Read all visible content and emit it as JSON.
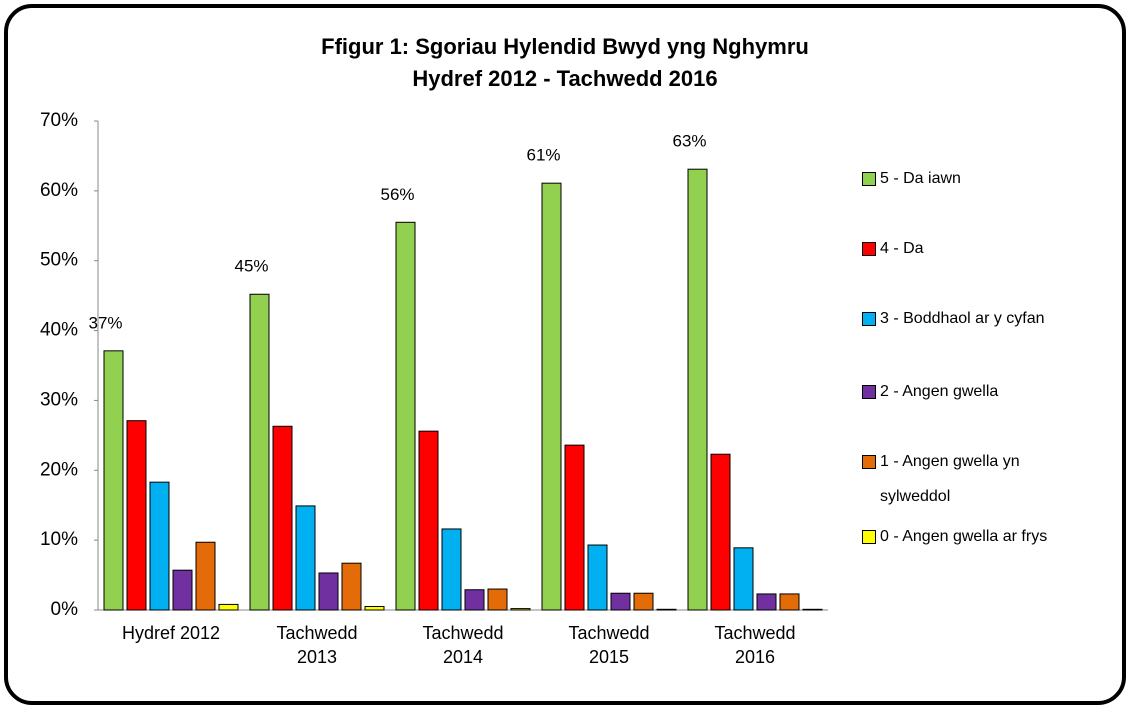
{
  "chart_data": {
    "type": "bar",
    "title": [
      "Ffigur 1: Sgoriau Hylendid Bwyd yng Nghymru",
      "Hydref 2012 - Tachwedd 2016"
    ],
    "categories": [
      "Hydref 2012",
      "Tachwedd 2013",
      "Tachwedd 2014",
      "Tachwedd 2015",
      "Tachwedd 2016"
    ],
    "series": [
      {
        "name": "5 - Da iawn",
        "color": "#92d050",
        "values": [
          37.1,
          45.2,
          55.5,
          61.1,
          63.1
        ],
        "value_labels": [
          "37%",
          "45%",
          "56%",
          "61%",
          "63%"
        ]
      },
      {
        "name": "4 - Da",
        "color": "#ff0000",
        "values": [
          27.1,
          26.3,
          25.6,
          23.6,
          22.3
        ]
      },
      {
        "name": "3 - Boddhaol ar y cyfan",
        "color": "#00b0f0",
        "values": [
          18.3,
          14.9,
          11.6,
          9.3,
          8.9
        ]
      },
      {
        "name": "2 - Angen gwella",
        "color": "#7030a0",
        "values": [
          5.7,
          5.3,
          2.9,
          2.4,
          2.3
        ]
      },
      {
        "name": "1 - Angen gwella yn sylweddol",
        "color": "#e36c09",
        "values": [
          9.7,
          6.7,
          3.0,
          2.4,
          2.3
        ]
      },
      {
        "name": "0 - Angen gwella ar frys",
        "color": "#ffff00",
        "values": [
          0.8,
          0.5,
          0.2,
          0.1,
          0.1
        ]
      }
    ],
    "ylim": [
      0,
      70
    ],
    "yticks": [
      {
        "value": 0,
        "label": "0%"
      },
      {
        "value": 10,
        "label": "10%"
      },
      {
        "value": 20,
        "label": "20%"
      },
      {
        "value": 30,
        "label": "30%"
      },
      {
        "value": 40,
        "label": "40%"
      },
      {
        "value": 50,
        "label": "50%"
      },
      {
        "value": 60,
        "label": "60%"
      },
      {
        "value": 70,
        "label": "70%"
      }
    ],
    "grid": false,
    "legend": "right"
  }
}
